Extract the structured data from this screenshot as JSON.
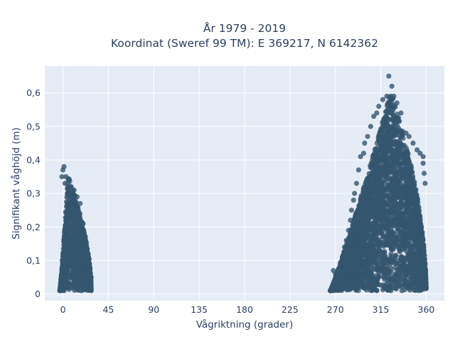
{
  "chart_data": {
    "type": "scatter",
    "title": "År 1979 - 2019",
    "subtitle": "Koordinat (Sweref 99 TM): E 369217, N 6142362",
    "xlabel": "Vågriktning (grader)",
    "ylabel": "Signifikant våghöjd (m)",
    "xlim": [
      -18,
      378
    ],
    "ylim": [
      -0.02,
      0.68
    ],
    "x_ticks": [
      0,
      45,
      90,
      135,
      180,
      225,
      270,
      315,
      360
    ],
    "x_tick_labels": [
      "0",
      "45",
      "90",
      "135",
      "180",
      "225",
      "270",
      "315",
      "360"
    ],
    "y_ticks": [
      0,
      0.1,
      0.2,
      0.3,
      0.4,
      0.5,
      0.6
    ],
    "y_tick_labels": [
      "0",
      "0,1",
      "0,2",
      "0,3",
      "0,4",
      "0,5",
      "0,6"
    ],
    "grid": true,
    "legend": "none",
    "marker_color": "#34566f",
    "plot_bg": "#e5ecf6",
    "clusters": [
      {
        "x_range": [
          -3,
          28
        ],
        "y_range": [
          0.01,
          0.38
        ],
        "peak_x": 5
      },
      {
        "x_range": [
          265,
          360
        ],
        "y_range": [
          0.01,
          0.65
        ],
        "peak_x": 325
      }
    ],
    "points": [
      {
        "x": 1,
        "y": 0.38
      },
      {
        "x": 0,
        "y": 0.37
      },
      {
        "x": -1,
        "y": 0.35
      },
      {
        "x": 3,
        "y": 0.35
      },
      {
        "x": 2,
        "y": 0.33
      },
      {
        "x": 5,
        "y": 0.33
      },
      {
        "x": 8,
        "y": 0.32
      },
      {
        "x": 11,
        "y": 0.31
      },
      {
        "x": 14,
        "y": 0.29
      },
      {
        "x": 17,
        "y": 0.27
      },
      {
        "x": 20,
        "y": 0.21
      },
      {
        "x": 22,
        "y": 0.17
      },
      {
        "x": 24,
        "y": 0.12
      },
      {
        "x": 26,
        "y": 0.09
      },
      {
        "x": 28,
        "y": 0.05
      },
      {
        "x": 27,
        "y": 0.06
      },
      {
        "x": 18,
        "y": 0.01
      },
      {
        "x": 1,
        "y": 0.01
      },
      {
        "x": 323,
        "y": 0.65
      },
      {
        "x": 326,
        "y": 0.62
      },
      {
        "x": 321,
        "y": 0.59
      },
      {
        "x": 325,
        "y": 0.59
      },
      {
        "x": 328,
        "y": 0.59
      },
      {
        "x": 317,
        "y": 0.58
      },
      {
        "x": 331,
        "y": 0.57
      },
      {
        "x": 313,
        "y": 0.56
      },
      {
        "x": 335,
        "y": 0.54
      },
      {
        "x": 311,
        "y": 0.54
      },
      {
        "x": 308,
        "y": 0.53
      },
      {
        "x": 305,
        "y": 0.5
      },
      {
        "x": 302,
        "y": 0.47
      },
      {
        "x": 299,
        "y": 0.45
      },
      {
        "x": 298,
        "y": 0.42
      },
      {
        "x": 295,
        "y": 0.41
      },
      {
        "x": 340,
        "y": 0.48
      },
      {
        "x": 343,
        "y": 0.47
      },
      {
        "x": 347,
        "y": 0.45
      },
      {
        "x": 351,
        "y": 0.43
      },
      {
        "x": 354,
        "y": 0.42
      },
      {
        "x": 357,
        "y": 0.41
      },
      {
        "x": 357,
        "y": 0.39
      },
      {
        "x": 358,
        "y": 0.36
      },
      {
        "x": 359,
        "y": 0.33
      },
      {
        "x": 293,
        "y": 0.37
      },
      {
        "x": 291,
        "y": 0.33
      },
      {
        "x": 289,
        "y": 0.3
      },
      {
        "x": 288,
        "y": 0.28
      },
      {
        "x": 286,
        "y": 0.25
      },
      {
        "x": 285,
        "y": 0.22
      },
      {
        "x": 283,
        "y": 0.19
      },
      {
        "x": 281,
        "y": 0.16
      },
      {
        "x": 279,
        "y": 0.14
      },
      {
        "x": 277,
        "y": 0.11
      },
      {
        "x": 275,
        "y": 0.09
      },
      {
        "x": 273,
        "y": 0.07
      },
      {
        "x": 270,
        "y": 0.06
      },
      {
        "x": 268,
        "y": 0.07
      },
      {
        "x": 336,
        "y": 0.01
      },
      {
        "x": 311,
        "y": 0.01
      }
    ]
  }
}
